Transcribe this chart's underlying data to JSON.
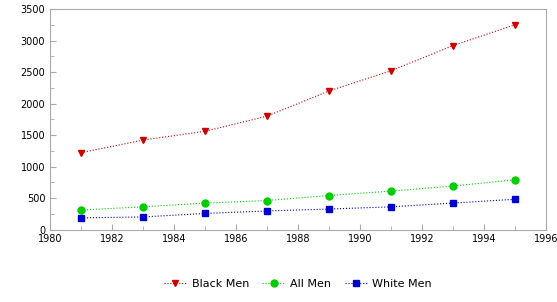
{
  "years": [
    1981,
    1983,
    1985,
    1987,
    1989,
    1991,
    1993,
    1995
  ],
  "black_men": [
    1220,
    1420,
    1560,
    1800,
    2200,
    2520,
    2920,
    3250
  ],
  "all_men": [
    310,
    360,
    420,
    460,
    540,
    610,
    690,
    790
  ],
  "white_men": [
    185,
    200,
    255,
    295,
    325,
    360,
    420,
    480
  ],
  "xlim": [
    1980,
    1996
  ],
  "ylim": [
    0,
    3500
  ],
  "yticks": [
    0,
    500,
    1000,
    1500,
    2000,
    2500,
    3000,
    3500
  ],
  "xticks": [
    1980,
    1982,
    1984,
    1986,
    1988,
    1990,
    1992,
    1994,
    1996
  ],
  "black_color": "#cc0000",
  "all_color": "#00cc00",
  "white_color": "#0000cc",
  "background_color": "#ffffff",
  "spine_color": "#aaaaaa",
  "tick_color": "#888888",
  "legend_labels": [
    "Black Men",
    "All Men",
    "White Men"
  ]
}
